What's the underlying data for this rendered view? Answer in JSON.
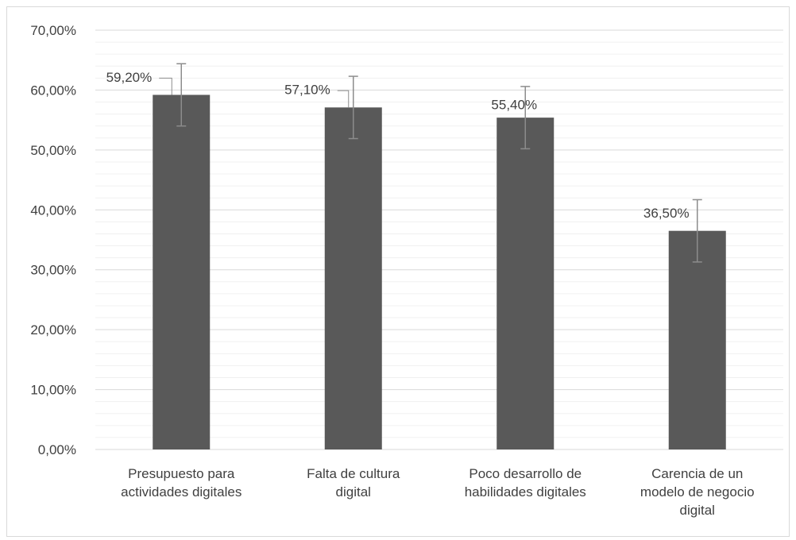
{
  "chart_data": {
    "type": "bar",
    "categories": [
      [
        "Presupuesto para",
        "actividades digitales"
      ],
      [
        "Falta de cultura",
        "digital"
      ],
      [
        "Poco desarrollo de",
        "habilidades digitales"
      ],
      [
        "Carencia de un",
        "modelo de negocio",
        "digital"
      ]
    ],
    "values": [
      59.2,
      57.1,
      55.4,
      36.5
    ],
    "data_labels": [
      "59,20%",
      "57,10%",
      "55,40%",
      "36,50%"
    ],
    "error_bars": 5.2,
    "ylim": [
      0,
      70
    ],
    "yticks": [
      0,
      10,
      20,
      30,
      40,
      50,
      60,
      70
    ],
    "ytick_labels": [
      "0,00%",
      "10,00%",
      "20,00%",
      "30,00%",
      "40,00%",
      "50,00%",
      "60,00%",
      "70,00%"
    ],
    "title": "",
    "xlabel": "",
    "ylabel": "",
    "grid": true,
    "minor_grid": true,
    "legend": "none",
    "bar_color": "#595959",
    "errorbar_color": "#8c8c8c",
    "grid_color": "#d9d9d9",
    "minor_grid_color": "#f0f0f0",
    "text_color": "#404040"
  }
}
